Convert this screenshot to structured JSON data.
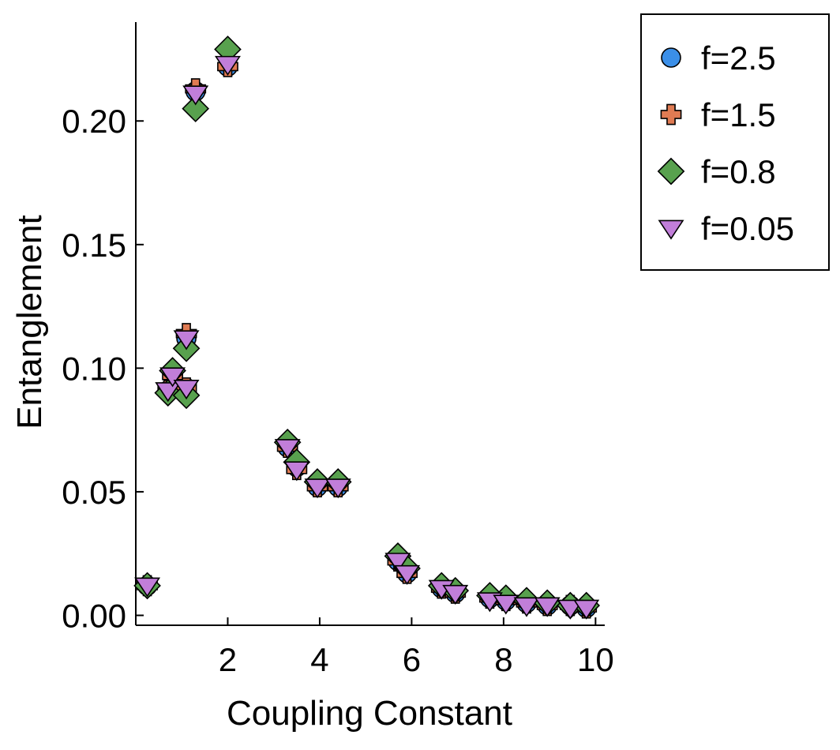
{
  "chart_data": {
    "type": "scatter",
    "title": "",
    "xlabel": "Coupling Constant",
    "ylabel": "Entanglement",
    "xlim": [
      0,
      10.2
    ],
    "ylim": [
      -0.004,
      0.24
    ],
    "xticks": [
      2,
      4,
      6,
      8,
      10
    ],
    "xtick_labels": [
      "2",
      "4",
      "6",
      "8",
      "10"
    ],
    "yticks": [
      0.0,
      0.05,
      0.1,
      0.15,
      0.2
    ],
    "ytick_labels": [
      "0.00",
      "0.05",
      "0.10",
      "0.15",
      "0.20"
    ],
    "grid": false,
    "legend_position": "top-right",
    "series": [
      {
        "name": "f=2.5",
        "marker": "circle",
        "color": "#3b8fe8",
        "x": [
          0.25,
          0.7,
          0.8,
          1.1,
          1.1,
          1.3,
          2.0,
          3.3,
          3.5,
          3.95,
          4.4,
          5.7,
          5.9,
          6.65,
          6.95,
          7.7,
          8.05,
          8.5,
          8.95,
          9.45,
          9.8
        ],
        "y": [
          0.012,
          0.091,
          0.097,
          0.092,
          0.112,
          0.212,
          0.222,
          0.068,
          0.06,
          0.052,
          0.052,
          0.022,
          0.017,
          0.011,
          0.009,
          0.007,
          0.006,
          0.005,
          0.004,
          0.004,
          0.003
        ]
      },
      {
        "name": "f=1.5",
        "marker": "plus",
        "color": "#e07b53",
        "x": [
          0.25,
          0.7,
          0.8,
          1.1,
          1.1,
          1.3,
          2.0,
          3.3,
          3.5,
          3.95,
          4.4,
          5.7,
          5.9,
          6.65,
          6.95,
          7.7,
          8.05,
          8.5,
          8.95,
          9.45,
          9.8
        ],
        "y": [
          0.012,
          0.091,
          0.097,
          0.092,
          0.114,
          0.213,
          0.222,
          0.068,
          0.059,
          0.052,
          0.052,
          0.022,
          0.017,
          0.011,
          0.009,
          0.007,
          0.006,
          0.005,
          0.004,
          0.004,
          0.003
        ]
      },
      {
        "name": "f=0.8",
        "marker": "diamond",
        "color": "#58a14e",
        "x": [
          0.25,
          0.7,
          0.8,
          1.1,
          1.1,
          1.3,
          2.0,
          3.3,
          3.5,
          3.95,
          4.4,
          5.7,
          5.9,
          6.65,
          6.95,
          7.7,
          8.05,
          8.5,
          8.95,
          9.45,
          9.8
        ],
        "y": [
          0.012,
          0.09,
          0.099,
          0.089,
          0.108,
          0.205,
          0.229,
          0.07,
          0.062,
          0.054,
          0.054,
          0.024,
          0.019,
          0.012,
          0.01,
          0.008,
          0.007,
          0.006,
          0.005,
          0.004,
          0.004
        ]
      },
      {
        "name": "f=0.05",
        "marker": "triangle-down",
        "color": "#c17ed9",
        "x": [
          0.25,
          0.7,
          0.8,
          1.1,
          1.1,
          1.3,
          2.0,
          3.3,
          3.5,
          3.95,
          4.4,
          5.7,
          5.9,
          6.65,
          6.95,
          7.7,
          8.05,
          8.5,
          8.95,
          9.45,
          9.8
        ],
        "y": [
          0.012,
          0.091,
          0.097,
          0.092,
          0.112,
          0.211,
          0.223,
          0.068,
          0.059,
          0.052,
          0.052,
          0.022,
          0.017,
          0.011,
          0.009,
          0.006,
          0.005,
          0.004,
          0.004,
          0.003,
          0.003
        ]
      }
    ]
  }
}
